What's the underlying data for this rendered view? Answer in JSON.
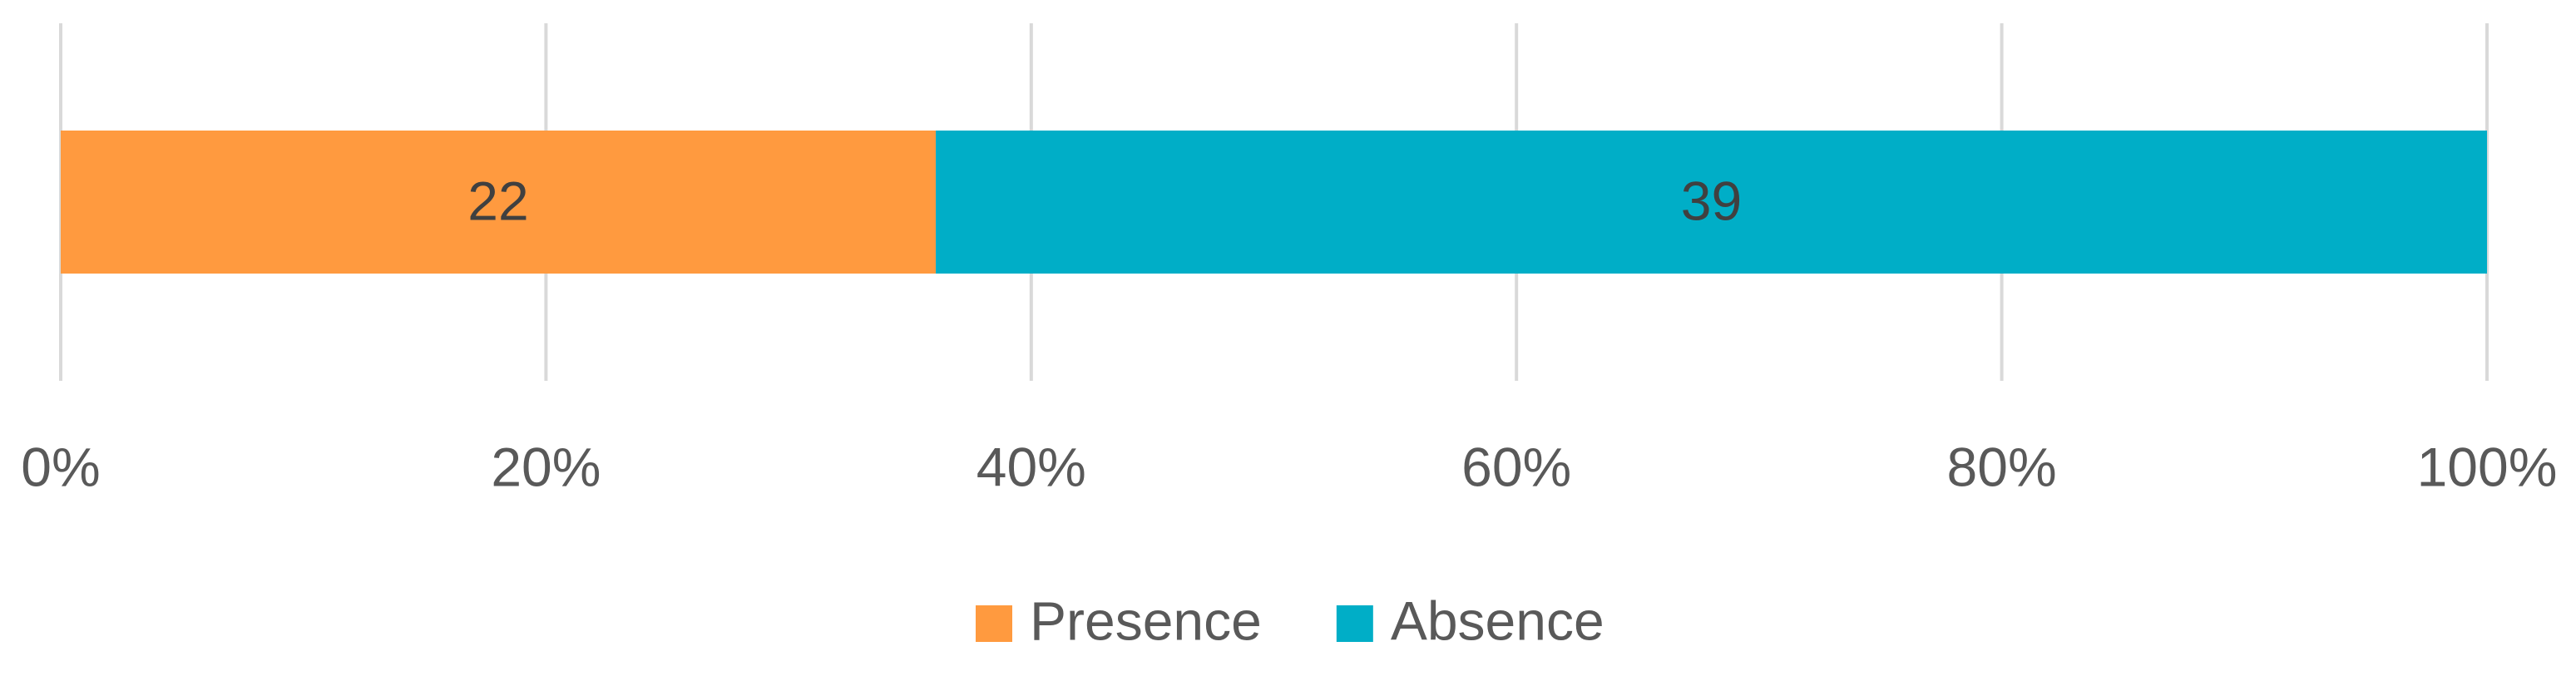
{
  "chart_data": {
    "type": "bar",
    "orientation": "horizontal",
    "stack": "percent",
    "categories": [
      null
    ],
    "series": [
      {
        "name": "Presence",
        "color": "#ff9a3f",
        "values": [
          22
        ]
      },
      {
        "name": "Absence",
        "color": "#00aec7",
        "values": [
          39
        ]
      }
    ],
    "xlim": [
      0,
      100
    ],
    "xticks": [
      {
        "value": 0,
        "label": "0%"
      },
      {
        "value": 20,
        "label": "20%"
      },
      {
        "value": 40,
        "label": "40%"
      },
      {
        "value": 60,
        "label": "60%"
      },
      {
        "value": 80,
        "label": "80%"
      },
      {
        "value": 100,
        "label": "100%"
      }
    ],
    "grid": true,
    "data_labels": true,
    "legend": "bottom"
  }
}
